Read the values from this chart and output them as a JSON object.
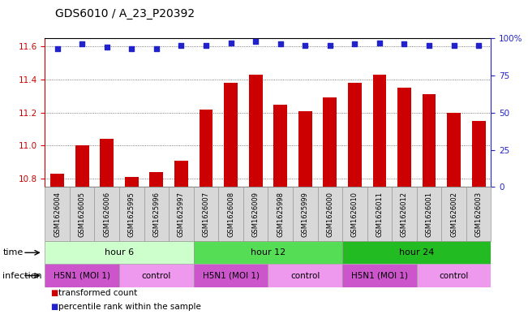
{
  "title": "GDS6010 / A_23_P20392",
  "samples": [
    "GSM1626004",
    "GSM1626005",
    "GSM1626006",
    "GSM1625995",
    "GSM1625996",
    "GSM1625997",
    "GSM1626007",
    "GSM1626008",
    "GSM1626009",
    "GSM1625998",
    "GSM1625999",
    "GSM1626000",
    "GSM1626010",
    "GSM1626011",
    "GSM1626012",
    "GSM1626001",
    "GSM1626002",
    "GSM1626003"
  ],
  "bar_values": [
    10.83,
    11.0,
    11.04,
    10.81,
    10.84,
    10.91,
    11.22,
    11.38,
    11.43,
    11.25,
    11.21,
    11.29,
    11.38,
    11.43,
    11.35,
    11.31,
    11.2,
    11.15
  ],
  "percentile_values": [
    93,
    96,
    94,
    93,
    93,
    95,
    95,
    97,
    98,
    96,
    95,
    95,
    96,
    97,
    96,
    95,
    95,
    95
  ],
  "ylim_left": [
    10.75,
    11.65
  ],
  "ylim_right": [
    0,
    100
  ],
  "yticks_left": [
    10.8,
    11.0,
    11.2,
    11.4,
    11.6
  ],
  "yticks_right": [
    0,
    25,
    50,
    75,
    100
  ],
  "bar_color": "#cc0000",
  "dot_color": "#2222cc",
  "bar_bottom": 10.75,
  "time_groups": [
    {
      "label": "hour 6",
      "start": 0,
      "end": 6,
      "color": "#ccffcc"
    },
    {
      "label": "hour 12",
      "start": 6,
      "end": 12,
      "color": "#55dd55"
    },
    {
      "label": "hour 24",
      "start": 12,
      "end": 18,
      "color": "#22bb22"
    }
  ],
  "infection_groups": [
    {
      "label": "H5N1 (MOI 1)",
      "start": 0,
      "end": 3,
      "color": "#cc55cc"
    },
    {
      "label": "control",
      "start": 3,
      "end": 6,
      "color": "#ee99ee"
    },
    {
      "label": "H5N1 (MOI 1)",
      "start": 6,
      "end": 9,
      "color": "#cc55cc"
    },
    {
      "label": "control",
      "start": 9,
      "end": 12,
      "color": "#ee99ee"
    },
    {
      "label": "H5N1 (MOI 1)",
      "start": 12,
      "end": 15,
      "color": "#cc55cc"
    },
    {
      "label": "control",
      "start": 15,
      "end": 18,
      "color": "#ee99ee"
    }
  ],
  "background_color": "#ffffff",
  "grid_color": "#555555",
  "title_fontsize": 10,
  "axis_label_color_left": "#cc0000",
  "axis_label_color_right": "#2222cc"
}
